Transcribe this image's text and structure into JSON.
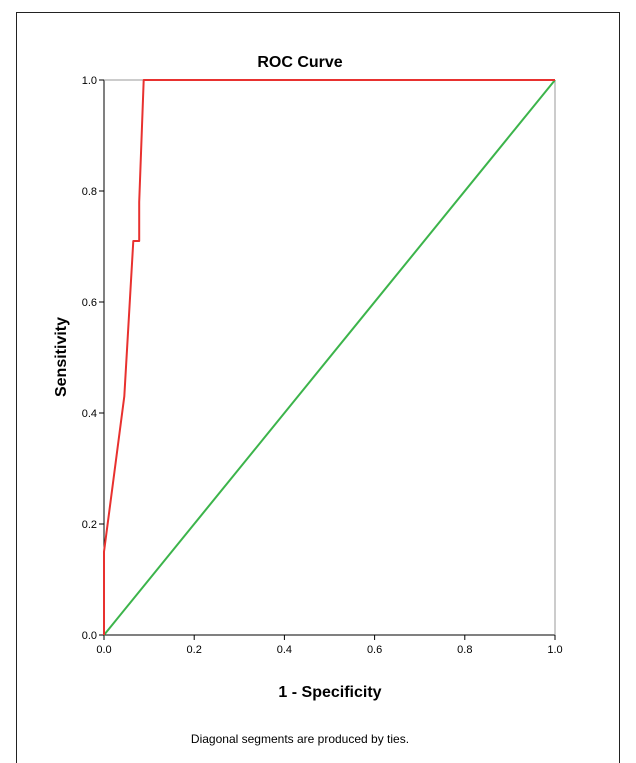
{
  "chart_data": {
    "type": "line",
    "title": "ROC Curve",
    "xlabel": "1 - Specificity",
    "ylabel": "Sensitivity",
    "xlim": [
      0.0,
      1.0
    ],
    "ylim": [
      0.0,
      1.0
    ],
    "x_ticks": [
      "0.0",
      "0.2",
      "0.4",
      "0.6",
      "0.8",
      "1.0"
    ],
    "y_ticks": [
      "0.0",
      "0.2",
      "0.4",
      "0.6",
      "0.8",
      "1.0"
    ],
    "grid": false,
    "legend": "none",
    "footnote": "Diagonal segments are produced by ties.",
    "series": [
      {
        "color": "#e8312f",
        "x": [
          0.0,
          0.0,
          0.0,
          0.045,
          0.065,
          0.078,
          0.078,
          0.088,
          1.0
        ],
        "y": [
          0.0,
          0.14,
          0.15,
          0.43,
          0.71,
          0.71,
          0.78,
          1.0,
          1.0
        ]
      },
      {
        "color": "#3cb44b",
        "x": [
          0.0,
          1.0
        ],
        "y": [
          0.0,
          1.0
        ]
      }
    ]
  }
}
